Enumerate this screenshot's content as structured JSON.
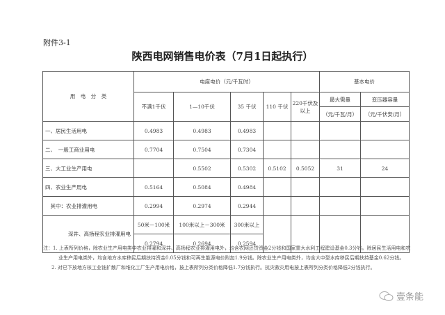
{
  "attachment": "附件3-1",
  "title": "陕西电网销售电价表（7月1日起执行）",
  "header": {
    "category": "用　电　分　类",
    "energy_price": "电度电价（元/千瓦时）",
    "basic_price": "基本电价",
    "voltages": [
      "不满1千伏",
      "1—10千伏",
      "35 千伏",
      "110 千伏",
      "220千伏及以上"
    ],
    "max_demand": "最大需量",
    "max_demand_unit": "（元/千瓦/月）",
    "capacity": "变压器容量",
    "capacity_unit": "（元/千伏安/月）"
  },
  "rows": [
    {
      "label": "一、居民生活用电",
      "values": [
        "0.4983",
        "0.4983",
        "0.4983",
        "",
        "",
        "",
        ""
      ]
    },
    {
      "label": "二、　一般工商业用电",
      "values": [
        "0.7704",
        "0.7504",
        "0.7304",
        "",
        "",
        "",
        ""
      ]
    },
    {
      "label": "三、大工业生产用电",
      "values": [
        "",
        "0.5502",
        "0.5302",
        "0.5102",
        "0.5052",
        "31",
        "24"
      ]
    },
    {
      "label": "四、农业生产用电",
      "values": [
        "0.5164",
        "0.5084",
        "0.4984",
        "",
        "",
        "",
        ""
      ]
    },
    {
      "label": "　其中：农业排灌用电",
      "values": [
        "0.2994",
        "0.2974",
        "0.2944",
        "",
        "",
        "",
        ""
      ]
    }
  ],
  "deep_well": {
    "label": "深井、高扬程农业排灌用电",
    "depths": [
      "50米－100米",
      "100米以上－300米",
      "300米以上"
    ],
    "values": [
      "0.2794",
      "0.2694",
      "0.2594"
    ]
  },
  "notes": [
    "注：1. 上表所列价格，除农业生产用电类中农业排灌和深井、高扬程农业排灌用电外，均含农网还贷资金2分钱和国家重大水利工程建设基金0.3分钱。除居民生活用电和农",
    "业生产用电类外，均含地方水库移民后期扶持资金0.05分钱和可再生能源电价附加1.9分钱。除农业生产用电类外，均含大中型水库移民后期扶持基金0.62分钱。",
    "2. 对已下放地方核工业铀扩散厂和堆化工厂生产用电价格，按上表所列分类价格降低1.7分钱执行。抗灾救灾用电按上表所列分类价格降低2分钱执行。"
  ],
  "watermark": "壹条能",
  "watermark_icon": "wechat-icon"
}
